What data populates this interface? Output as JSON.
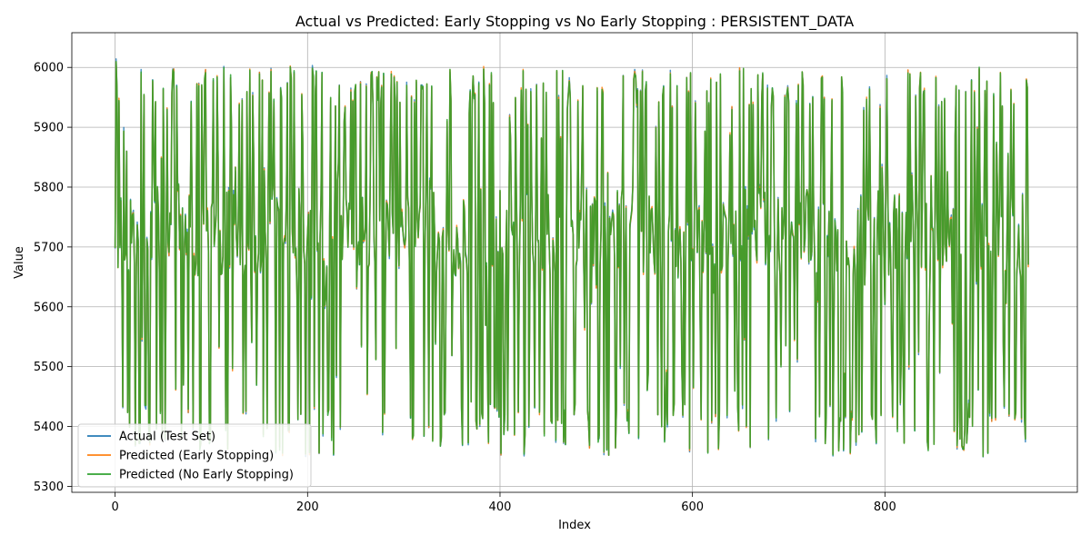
{
  "chart_data": {
    "type": "line",
    "title": "Actual vs Predicted: Early Stopping vs No Early Stopping : PERSISTENT_DATA",
    "xlabel": "Index",
    "ylabel": "Value",
    "xlim": [
      -45,
      1000
    ],
    "ylim": [
      5290,
      6058
    ],
    "xticks": [
      0,
      200,
      400,
      600,
      800
    ],
    "yticks": [
      5300,
      5400,
      5500,
      5600,
      5700,
      5800,
      5900,
      6000
    ],
    "grid": true,
    "legend_position": "lower-left",
    "n_points": 950,
    "series": [
      {
        "name": "Actual (Test Set)",
        "color": "#1f77b4",
        "seed": 7,
        "noise": 5
      },
      {
        "name": "Predicted (Early Stopping)",
        "color": "#ff7f0e",
        "seed": 11,
        "noise": 3
      },
      {
        "name": "Predicted (No Early Stopping)",
        "color": "#2ca02c",
        "seed": 13,
        "noise": 3
      }
    ]
  }
}
